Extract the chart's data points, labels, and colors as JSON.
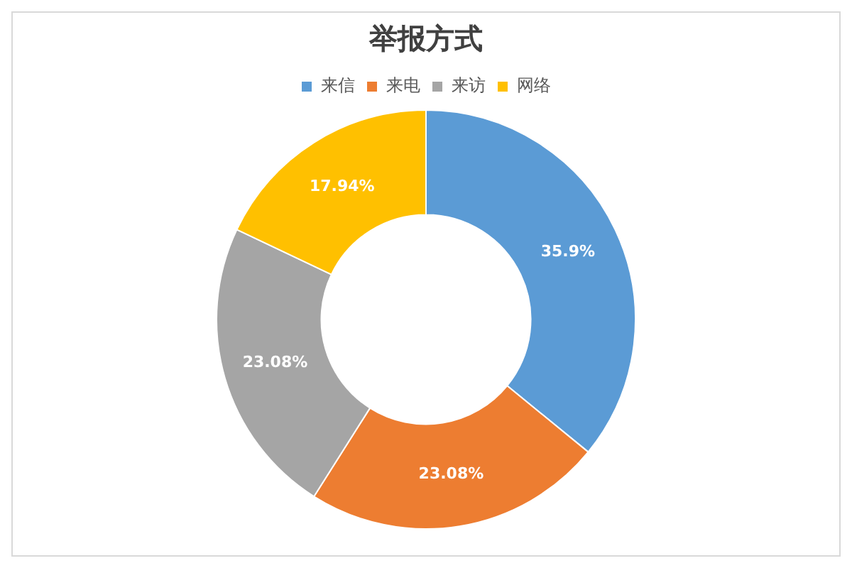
{
  "chart_data": {
    "type": "donut",
    "title": "举报方式",
    "categories": [
      "来信",
      "来电",
      "来访",
      "网络"
    ],
    "values": [
      35.9,
      23.08,
      23.08,
      17.94
    ],
    "colors": [
      "#5b9bd5",
      "#ed7d31",
      "#a5a5a5",
      "#ffc000"
    ],
    "value_labels": [
      "35.9%",
      "23.08%",
      "23.08%",
      "17.94%"
    ],
    "legend": "top"
  }
}
